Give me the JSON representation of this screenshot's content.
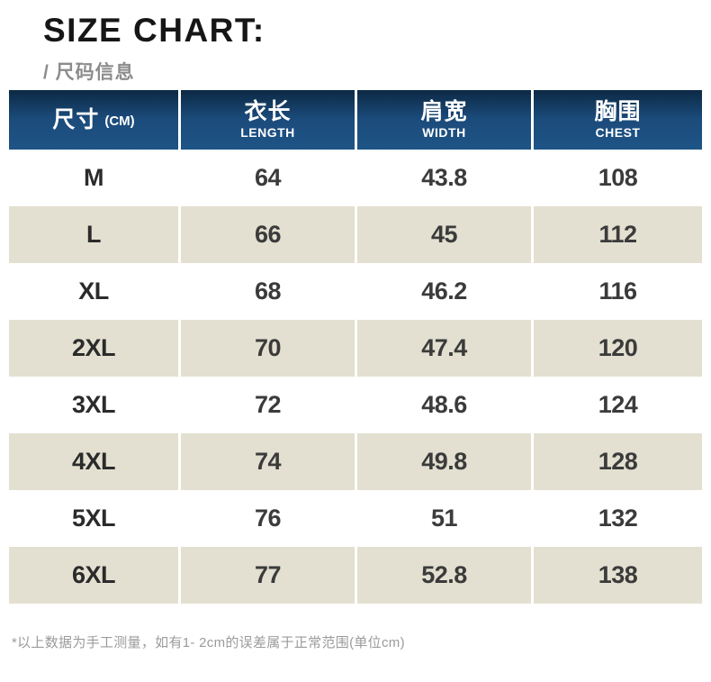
{
  "page": {
    "title": "SIZE CHART:",
    "subtitle": "/ 尺码信息",
    "footnote": "*以上数据为手工测量，如有1- 2cm的误差属于正常范围(单位cm)"
  },
  "colors": {
    "header_blue_top": "#0c2944",
    "header_blue_bottom": "#1e5486",
    "row_beige": "#e3e0d1",
    "row_white": "#ffffff",
    "text_dark": "#3b3b3b",
    "text_gray": "#9b9b9b"
  },
  "table": {
    "unit": "CM",
    "headers": [
      {
        "zh": "尺寸",
        "en": "(CM)"
      },
      {
        "zh": "衣长",
        "en": "LENGTH"
      },
      {
        "zh": "肩宽",
        "en": "WIDTH"
      },
      {
        "zh": "胸围",
        "en": "CHEST"
      }
    ],
    "rows": [
      {
        "size": "M",
        "length": "64",
        "width": "43.8",
        "chest": "108"
      },
      {
        "size": "L",
        "length": "66",
        "width": "45",
        "chest": "112"
      },
      {
        "size": "XL",
        "length": "68",
        "width": "46.2",
        "chest": "116"
      },
      {
        "size": "2XL",
        "length": "70",
        "width": "47.4",
        "chest": "120"
      },
      {
        "size": "3XL",
        "length": "72",
        "width": "48.6",
        "chest": "124"
      },
      {
        "size": "4XL",
        "length": "74",
        "width": "49.8",
        "chest": "128"
      },
      {
        "size": "5XL",
        "length": "76",
        "width": "51",
        "chest": "132"
      },
      {
        "size": "6XL",
        "length": "77",
        "width": "52.8",
        "chest": "138"
      }
    ]
  }
}
